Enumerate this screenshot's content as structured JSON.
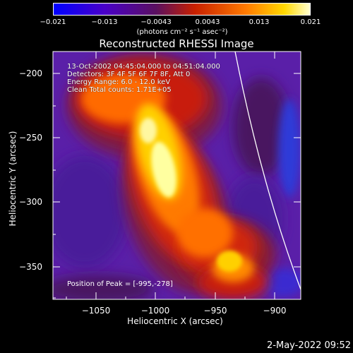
{
  "colorbar": {
    "ticks": [
      "−0.021",
      "−0.013",
      "−0.0043",
      "0.0043",
      "0.013",
      "0.021"
    ],
    "units_label": "(photons cm⁻² s⁻¹ asec⁻²)",
    "range": [
      -0.021,
      0.021
    ]
  },
  "title": "Reconstructed RHESSI Image",
  "annotations": {
    "time": "13-Oct-2002 04:45:04.000 to 04:51:04.000",
    "detectors": "Detectors: 3F 4F 5F 6F 7F 8F, Att 0",
    "energy": "Energy Range: 6.0 - 12.0 keV",
    "method": "Clean     Total counts: 1.71E+05",
    "peak": "Position of Peak = [-995,-278]"
  },
  "axes": {
    "xlabel": "Heliocentric X (arcsec)",
    "ylabel": "Heliocentric Y (arcsec)",
    "xticks": [
      "−1050",
      "−1000",
      "−950",
      "−900"
    ],
    "yticks": [
      "−200",
      "−250",
      "−300",
      "−350"
    ],
    "xlim": [
      -1080,
      -888
    ],
    "ylim": [
      -375,
      -188
    ]
  },
  "footer": {
    "date": "2-May-2022 09:52"
  },
  "image_data": {
    "peak_position": [
      -995,
      -278
    ],
    "solar_limb": "white arc on right side"
  }
}
